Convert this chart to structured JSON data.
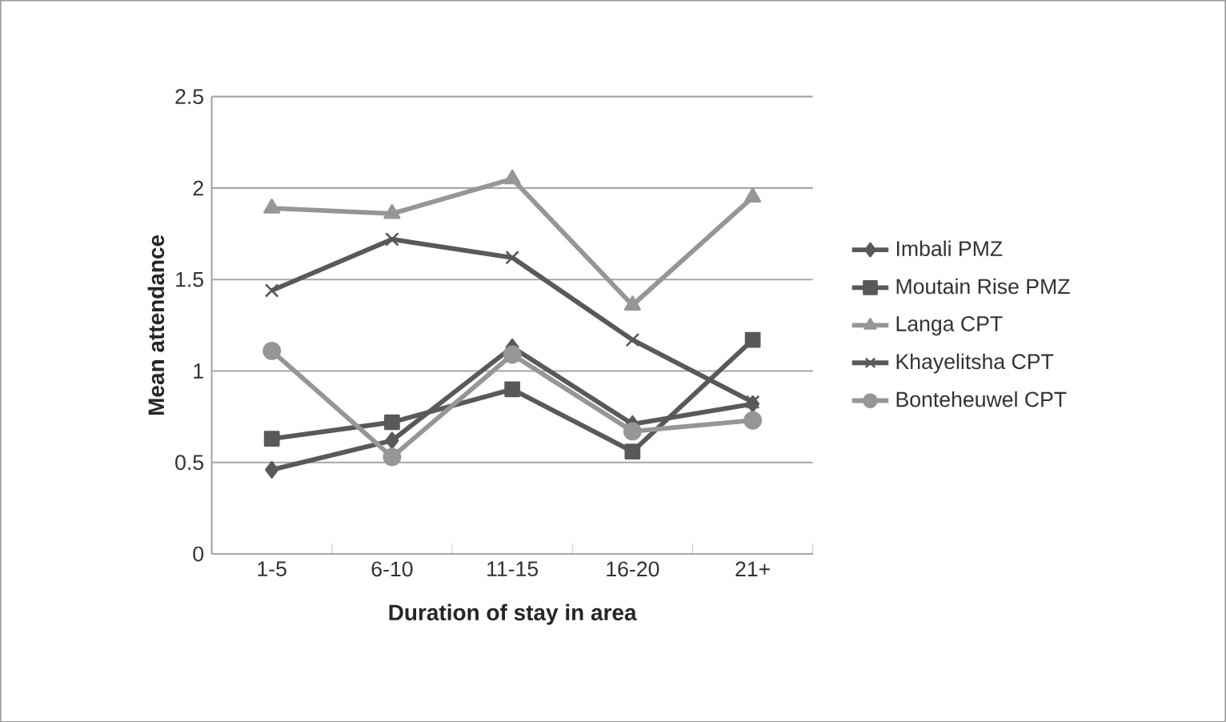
{
  "chart_data": {
    "type": "line",
    "xlabel": "Duration of stay in area",
    "ylabel": "Mean attendance",
    "categories": [
      "1-5",
      "6-10",
      "11-15",
      "16-20",
      "21+"
    ],
    "series": [
      {
        "name": "Imbali PMZ",
        "color": "#595959",
        "marker": "diamond",
        "values": [
          0.46,
          0.62,
          1.13,
          0.71,
          0.82
        ]
      },
      {
        "name": "Moutain Rise PMZ",
        "color": "#595959",
        "marker": "square",
        "values": [
          0.63,
          0.72,
          0.9,
          0.56,
          1.17
        ]
      },
      {
        "name": "Langa CPT",
        "color": "#969696",
        "marker": "triangle",
        "values": [
          1.89,
          1.86,
          2.05,
          1.36,
          1.95
        ]
      },
      {
        "name": "Khayelitsha CPT",
        "color": "#595959",
        "marker": "cross",
        "values": [
          1.44,
          1.72,
          1.62,
          1.17,
          0.83
        ]
      },
      {
        "name": "Bonteheuwel CPT",
        "color": "#969696",
        "marker": "circle",
        "values": [
          1.11,
          0.53,
          1.09,
          0.67,
          0.73
        ]
      }
    ],
    "ylim": [
      0,
      2.5
    ],
    "yticks": [
      0,
      0.5,
      1,
      1.5,
      2,
      2.5
    ],
    "grid": "y",
    "legend": "right",
    "line_style": "solid"
  }
}
